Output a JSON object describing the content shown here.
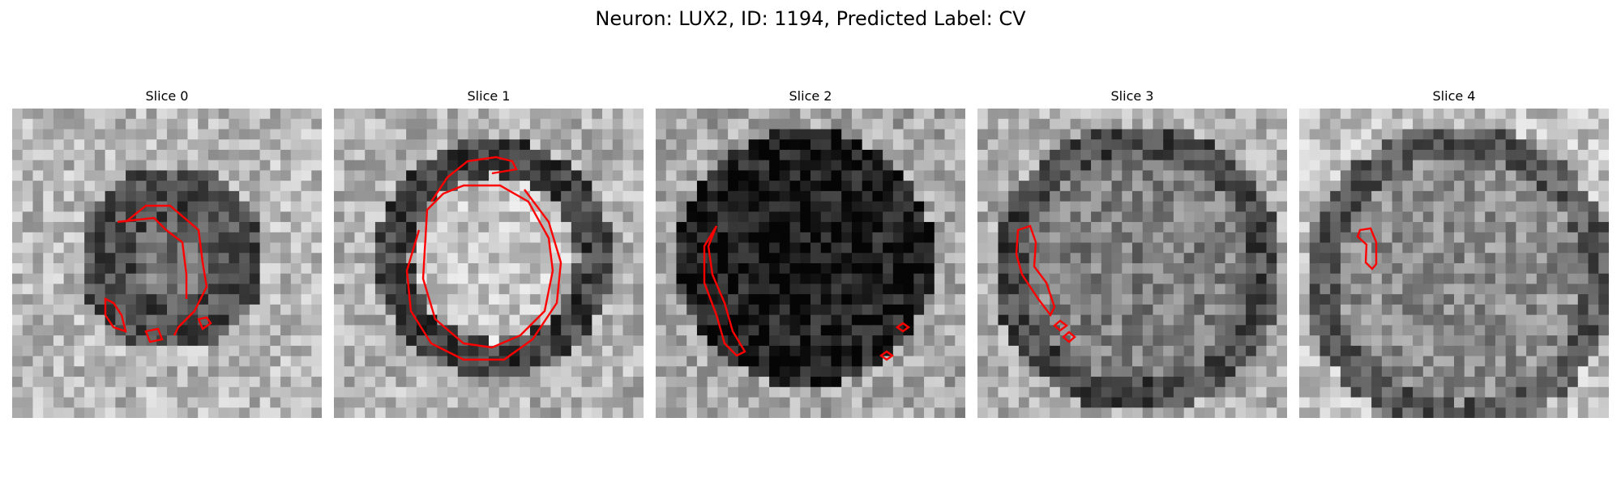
{
  "figure": {
    "title": "Neuron: LUX2, ID: 1194, Predicted Label: CV",
    "contour_color": "#ff0000"
  },
  "panels": [
    {
      "title": "Slice 0",
      "style": "light",
      "background": "textured grayscale"
    },
    {
      "title": "Slice 1",
      "style": "light",
      "background": "textured grayscale"
    },
    {
      "title": "Slice 2",
      "style": "dark",
      "background": "textured grayscale"
    },
    {
      "title": "Slice 3",
      "style": "medium",
      "background": "textured grayscale"
    },
    {
      "title": "Slice 4",
      "style": "medium",
      "background": "textured grayscale"
    }
  ]
}
